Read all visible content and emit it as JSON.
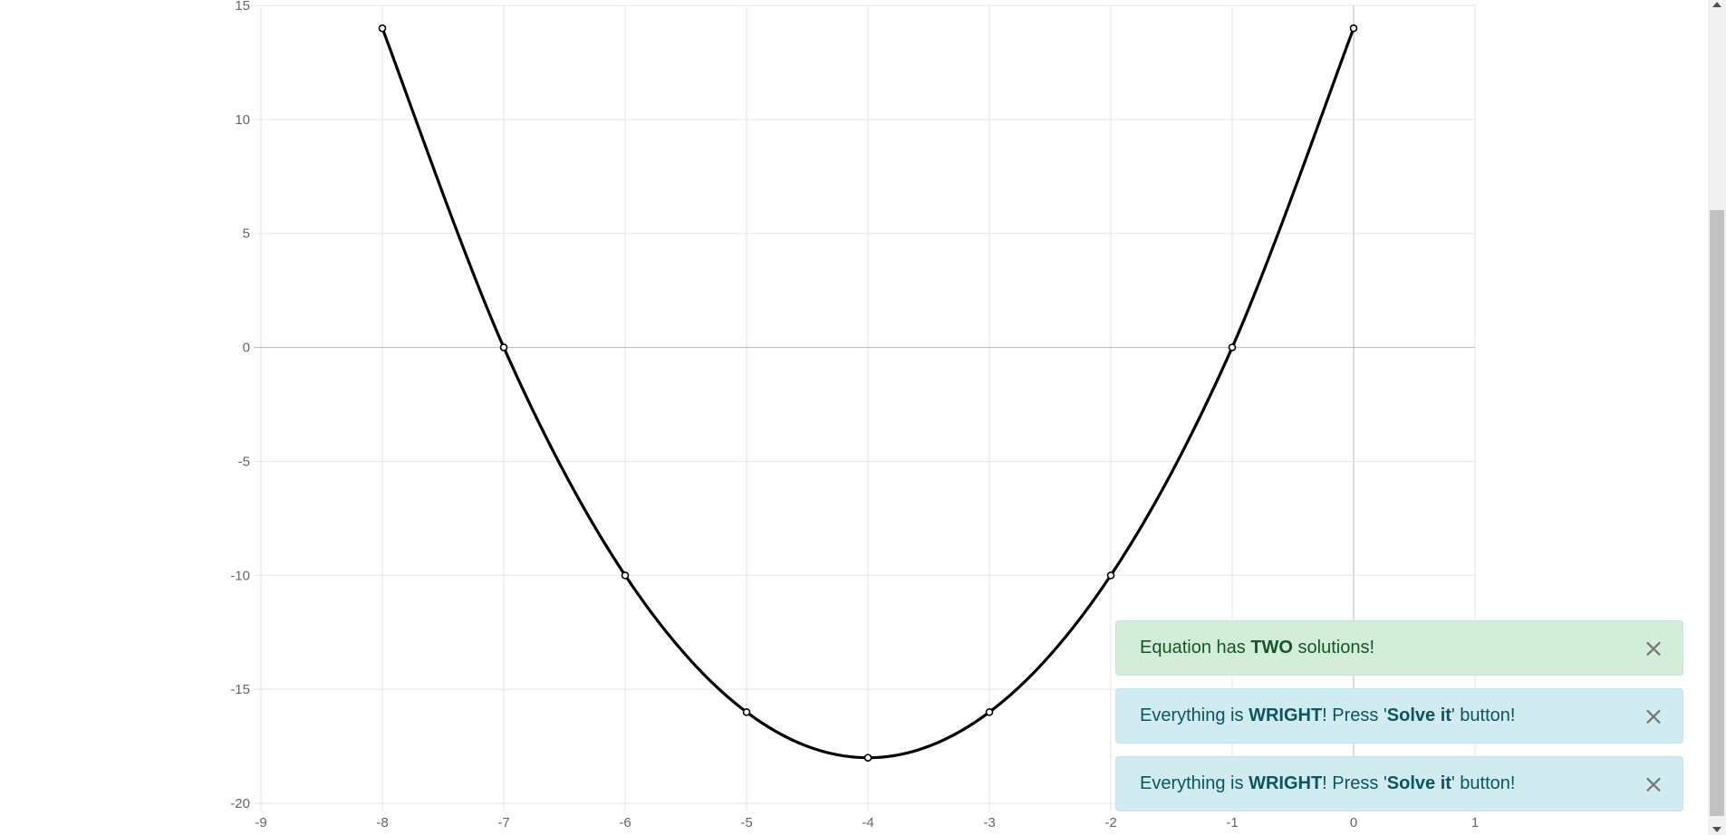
{
  "chart_data": {
    "type": "line",
    "x": [
      -8,
      -7,
      -6,
      -5,
      -4,
      -3,
      -2,
      -1,
      0
    ],
    "series": [
      {
        "values": [
          14,
          0,
          -10,
          -16,
          -18,
          -16,
          -10,
          0,
          14
        ]
      }
    ],
    "xlim": [
      -9,
      1
    ],
    "ylim": [
      -20,
      15
    ],
    "xticks": [
      "-9",
      "-8",
      "-7",
      "-6",
      "-5",
      "-4",
      "-3",
      "-2",
      "-1",
      "0",
      "1"
    ],
    "yticks": [
      "15",
      "10",
      "5",
      "0",
      "-5",
      "-10",
      "-15",
      "-20"
    ],
    "grid": true,
    "line_color": "#000000"
  },
  "alerts": [
    {
      "kind": "success",
      "pre": "Equation has ",
      "b1": "TWO",
      "mid": " solutions!",
      "b2": "",
      "post": "",
      "close": "×"
    },
    {
      "kind": "info",
      "pre": "Everything is ",
      "b1": "WRIGHT",
      "mid": "! Press '",
      "b2": "Solve it",
      "post": "' button!",
      "close": "×"
    },
    {
      "kind": "info",
      "pre": "Everything is ",
      "b1": "WRIGHT",
      "mid": "! Press '",
      "b2": "Solve it",
      "post": "' button!",
      "close": "×"
    }
  ],
  "colors": {
    "success_bg": "#d4edda",
    "success_text": "#155724",
    "info_bg": "#d1ecf1",
    "info_text": "#0c5460"
  }
}
